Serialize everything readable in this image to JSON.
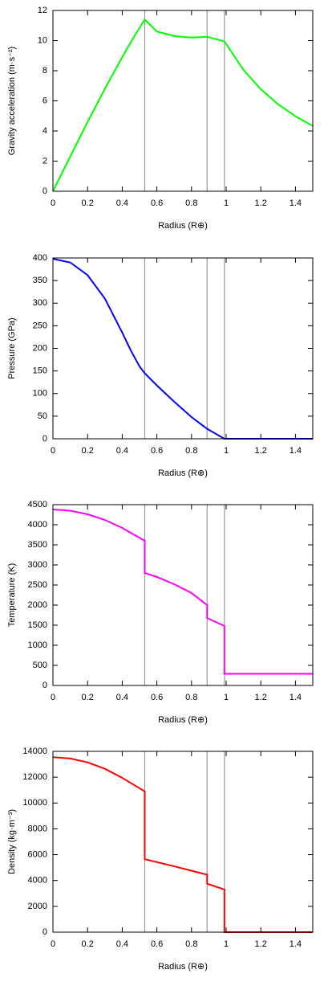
{
  "chart_data": [
    {
      "type": "line",
      "xlabel": "Radius (R⊕)",
      "ylabel": "Gravity acceleration (m·s⁻²)",
      "x": [
        0,
        0.1,
        0.2,
        0.3,
        0.4,
        0.45,
        0.53,
        0.6,
        0.7,
        0.8,
        0.89,
        0.99,
        1.1,
        1.2,
        1.3,
        1.4,
        1.5
      ],
      "values": [
        0,
        2.3,
        4.6,
        6.8,
        8.9,
        9.9,
        11.4,
        10.6,
        10.3,
        10.2,
        10.25,
        9.95,
        8.06,
        6.77,
        5.77,
        4.98,
        4.33
      ],
      "color": "#00ff00",
      "xlim": [
        0,
        1.5
      ],
      "ylim": [
        0,
        12
      ],
      "xticks": [
        0,
        0.2,
        0.4,
        0.6,
        0.8,
        1,
        1.2,
        1.4
      ],
      "yticks": [
        0,
        2,
        4,
        6,
        8,
        10,
        12
      ],
      "vlines": [
        0.53,
        0.89,
        0.99
      ]
    },
    {
      "type": "line",
      "xlabel": "Radius (R⊕)",
      "ylabel": "Pressure (GPa)",
      "x": [
        0,
        0.1,
        0.2,
        0.3,
        0.4,
        0.45,
        0.5,
        0.53,
        0.6,
        0.7,
        0.8,
        0.89,
        0.99,
        1.5
      ],
      "values": [
        398,
        390,
        362,
        310,
        235,
        195,
        160,
        145,
        118,
        82,
        48,
        22,
        0,
        0
      ],
      "color": "#0000ff",
      "xlim": [
        0,
        1.5
      ],
      "ylim": [
        0,
        400
      ],
      "xticks": [
        0,
        0.2,
        0.4,
        0.6,
        0.8,
        1,
        1.2,
        1.4
      ],
      "yticks": [
        0,
        50,
        100,
        150,
        200,
        250,
        300,
        350,
        400
      ],
      "vlines": [
        0.53,
        0.89,
        0.99
      ]
    },
    {
      "type": "line",
      "xlabel": "Radius (R⊕)",
      "ylabel": "Temperature (K)",
      "x": [
        0,
        0.1,
        0.2,
        0.3,
        0.4,
        0.53,
        0.53,
        0.6,
        0.7,
        0.8,
        0.89,
        0.89,
        0.99,
        0.99,
        1.5
      ],
      "values": [
        4380,
        4350,
        4260,
        4120,
        3920,
        3600,
        2800,
        2700,
        2520,
        2300,
        2000,
        1680,
        1480,
        290,
        290
      ],
      "color": "#ff00ff",
      "xlim": [
        0,
        1.5
      ],
      "ylim": [
        0,
        4500
      ],
      "xticks": [
        0,
        0.2,
        0.4,
        0.6,
        0.8,
        1,
        1.2,
        1.4
      ],
      "yticks": [
        0,
        500,
        1000,
        1500,
        2000,
        2500,
        3000,
        3500,
        4000,
        4500
      ],
      "vlines": [
        0.53,
        0.89,
        0.99
      ]
    },
    {
      "type": "line",
      "xlabel": "Radius (R⊕)",
      "ylabel": "Density (kg·m⁻³)",
      "x": [
        0,
        0.1,
        0.2,
        0.3,
        0.4,
        0.53,
        0.53,
        0.7,
        0.89,
        0.89,
        0.99,
        0.99,
        1.5
      ],
      "values": [
        13550,
        13450,
        13150,
        12650,
        11950,
        10900,
        5650,
        5100,
        4450,
        3750,
        3300,
        0,
        0
      ],
      "color": "#ff0000",
      "xlim": [
        0,
        1.5
      ],
      "ylim": [
        0,
        14000
      ],
      "xticks": [
        0,
        0.2,
        0.4,
        0.6,
        0.8,
        1,
        1.2,
        1.4
      ],
      "yticks": [
        0,
        2000,
        4000,
        6000,
        8000,
        10000,
        12000,
        14000
      ],
      "vlines": [
        0.53,
        0.89,
        0.99
      ]
    }
  ]
}
